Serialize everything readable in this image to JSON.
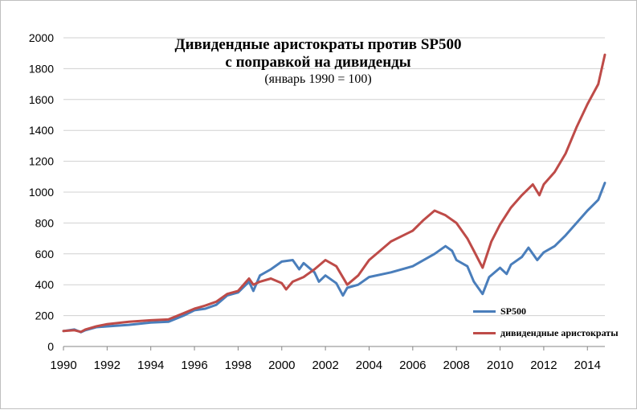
{
  "chart_data": {
    "type": "line",
    "title": "Дивидендные аристократы против SP500",
    "title_line2": "с поправкой на дивиденды",
    "subtitle": "(январь 1990 = 100)",
    "xlabel": "",
    "ylabel": "",
    "xlim": [
      1990,
      2014.8
    ],
    "ylim": [
      0,
      2000
    ],
    "x_ticks": [
      "1990",
      "1992",
      "1994",
      "1996",
      "1998",
      "2000",
      "2002",
      "2004",
      "2006",
      "2008",
      "2010",
      "2012",
      "2014"
    ],
    "y_ticks": [
      "0",
      "200",
      "400",
      "600",
      "800",
      "1000",
      "1200",
      "1400",
      "1600",
      "1800",
      "2000"
    ],
    "grid": "horizontal",
    "legend_position": "bottom-right",
    "series": [
      {
        "name": "SP500",
        "color": "#4a7ebb",
        "x": [
          1990,
          1990.5,
          1990.8,
          1991,
          1991.5,
          1992,
          1993,
          1994,
          1994.8,
          1995.5,
          1996,
          1996.5,
          1997,
          1997.5,
          1998,
          1998.5,
          1998.7,
          1999,
          1999.5,
          2000,
          2000.5,
          2000.8,
          2001,
          2001.5,
          2001.7,
          2002,
          2002.5,
          2002.8,
          2003,
          2003.5,
          2004,
          2005,
          2006,
          2007,
          2007.5,
          2007.8,
          2008,
          2008.5,
          2008.8,
          2009.2,
          2009.5,
          2010,
          2010.3,
          2010.5,
          2011,
          2011.3,
          2011.7,
          2012,
          2012.5,
          2013,
          2013.5,
          2014,
          2014.5,
          2014.8
        ],
        "values": [
          100,
          110,
          92,
          105,
          125,
          130,
          140,
          155,
          160,
          200,
          235,
          245,
          270,
          330,
          350,
          420,
          360,
          460,
          500,
          550,
          560,
          500,
          540,
          480,
          420,
          460,
          410,
          330,
          380,
          400,
          450,
          480,
          520,
          600,
          650,
          620,
          560,
          520,
          420,
          340,
          450,
          510,
          470,
          530,
          580,
          640,
          560,
          610,
          650,
          720,
          800,
          880,
          950,
          1060
        ]
      },
      {
        "name": "дивидендные аристократы",
        "color": "#be4b48",
        "x": [
          1990,
          1990.5,
          1990.8,
          1991,
          1991.5,
          1992,
          1993,
          1994,
          1994.8,
          1995.5,
          1996,
          1996.5,
          1997,
          1997.5,
          1998,
          1998.5,
          1998.7,
          1999,
          1999.5,
          2000,
          2000.2,
          2000.5,
          2001,
          2001.5,
          2002,
          2002.5,
          2003,
          2003.5,
          2004,
          2004.5,
          2005,
          2006,
          2006.5,
          2007,
          2007.5,
          2008,
          2008.5,
          2008.8,
          2009.2,
          2009.6,
          2010,
          2010.5,
          2011,
          2011.5,
          2011.8,
          2012,
          2012.5,
          2013,
          2013.5,
          2014,
          2014.5,
          2014.8
        ],
        "values": [
          100,
          105,
          95,
          110,
          130,
          145,
          160,
          170,
          175,
          215,
          245,
          265,
          290,
          340,
          360,
          440,
          400,
          420,
          440,
          410,
          370,
          420,
          450,
          500,
          560,
          520,
          400,
          460,
          560,
          620,
          680,
          750,
          820,
          880,
          850,
          800,
          700,
          620,
          510,
          680,
          790,
          900,
          980,
          1050,
          980,
          1050,
          1130,
          1250,
          1420,
          1570,
          1700,
          1890
        ]
      }
    ]
  }
}
